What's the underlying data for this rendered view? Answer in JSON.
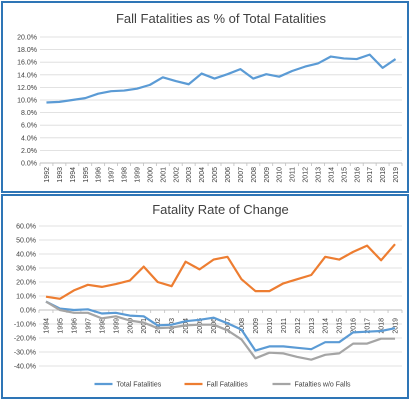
{
  "chart_data": [
    {
      "type": "line",
      "title": "Fall Fatalities as % of Total Fatalities",
      "x": [
        "1992",
        "1993",
        "1994",
        "1995",
        "1996",
        "1997",
        "1998",
        "1999",
        "2000",
        "2001",
        "2002",
        "2003",
        "2004",
        "2005",
        "2006",
        "2007",
        "2008",
        "2009",
        "2010",
        "2011",
        "2012",
        "2013",
        "2014",
        "2015",
        "2016",
        "2017",
        "2018",
        "2019"
      ],
      "series": [
        {
          "values": [
            9.6,
            9.7,
            10.0,
            10.3,
            11.0,
            11.4,
            11.5,
            11.8,
            12.4,
            13.6,
            13.0,
            12.5,
            14.2,
            13.4,
            14.1,
            14.9,
            13.4,
            14.1,
            13.7,
            14.6,
            15.3,
            15.8,
            16.9,
            16.6,
            16.5,
            17.2,
            15.1,
            16.5
          ],
          "color": "#5b9bd5"
        }
      ],
      "ylim": [
        0,
        20
      ],
      "yticks": [
        "0.0%",
        "2.0%",
        "4.0%",
        "6.0%",
        "8.0%",
        "10.0%",
        "12.0%",
        "14.0%",
        "16.0%",
        "18.0%",
        "20.0%"
      ],
      "grid": true,
      "legend": "none"
    },
    {
      "type": "line",
      "title": "Fatality Rate of Change",
      "x": [
        "1994",
        "1995",
        "1996",
        "1997",
        "1998",
        "1999",
        "2000",
        "2001",
        "2002",
        "2003",
        "2004",
        "2005",
        "2006",
        "2007",
        "2008",
        "2009",
        "2010",
        "2011",
        "2012",
        "2013",
        "2014",
        "2015",
        "2016",
        "2017",
        "2018",
        "2019"
      ],
      "series": [
        {
          "name": "Total Fatalities",
          "color": "#5b9bd5",
          "values": [
            6.0,
            1.0,
            0.0,
            0.5,
            -2.5,
            -2.0,
            -4.0,
            -4.5,
            -11.0,
            -10.5,
            -8.0,
            -7.0,
            -5.5,
            -9.5,
            -14.0,
            -29.0,
            -26.0,
            -26.0,
            -27.0,
            -28.0,
            -23.0,
            -23.0,
            -16.0,
            -15.5,
            -15.0,
            -13.0
          ]
        },
        {
          "name": "Fall Fatalities",
          "color": "#ed7d31",
          "values": [
            9.5,
            8.0,
            14.0,
            18.0,
            16.5,
            18.5,
            21.0,
            31.0,
            20.0,
            17.0,
            34.5,
            29.0,
            36.0,
            38.0,
            22.0,
            13.5,
            13.5,
            19.0,
            22.0,
            25.0,
            38.0,
            36.0,
            41.5,
            46.0,
            35.5,
            47.0
          ]
        },
        {
          "name": "Fatalties w/o Falls",
          "color": "#a5a5a5",
          "values": [
            6.0,
            0.0,
            -2.0,
            -2.0,
            -6.0,
            -4.5,
            -7.5,
            -9.0,
            -13.0,
            -12.5,
            -11.0,
            -10.5,
            -10.5,
            -14.5,
            -21.0,
            -34.5,
            -30.5,
            -31.0,
            -33.5,
            -35.5,
            -32.0,
            -31.0,
            -24.0,
            -24.0,
            -20.5,
            -20.5
          ]
        }
      ],
      "ylim": [
        -40,
        60
      ],
      "yticks": [
        "-40.0%",
        "-30.0%",
        "-20.0%",
        "-10.0%",
        "0.0%",
        "10.0%",
        "20.0%",
        "30.0%",
        "40.0%",
        "50.0%",
        "60.0%"
      ],
      "grid": true,
      "legend": "bottom"
    }
  ]
}
